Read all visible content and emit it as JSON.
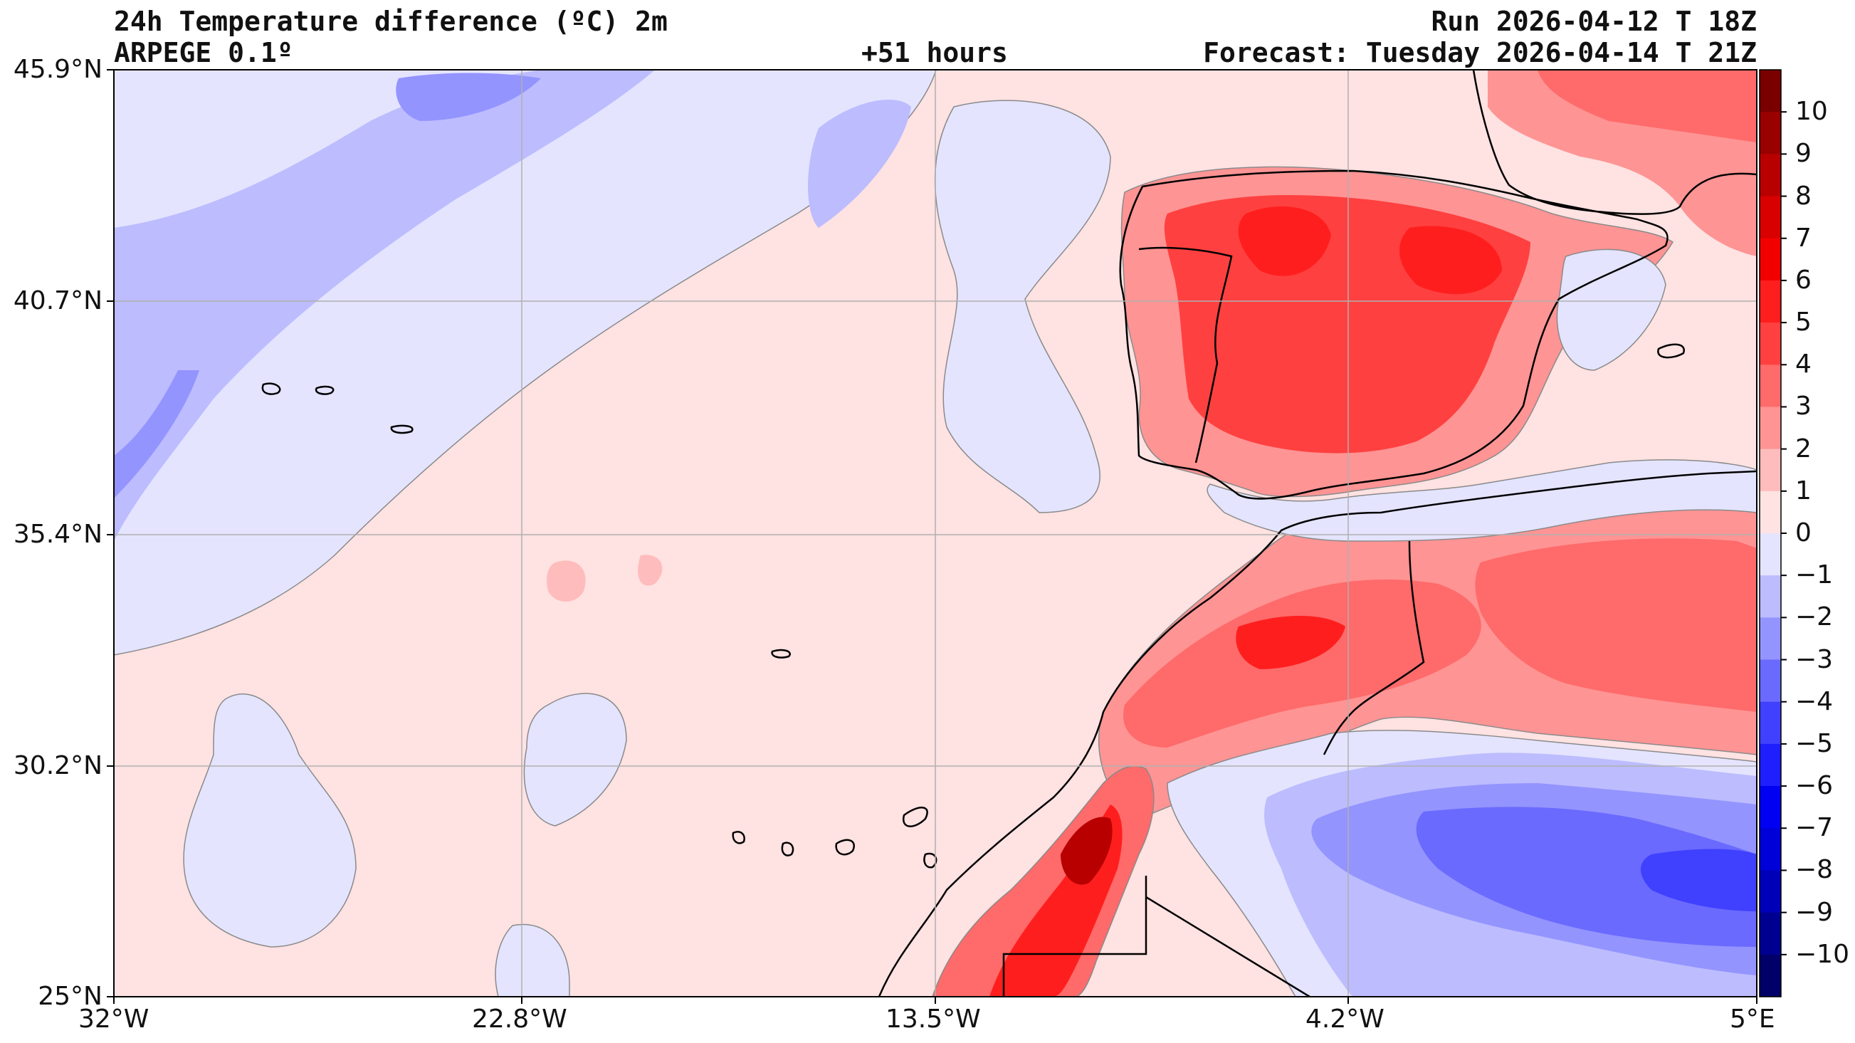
{
  "header": {
    "title": "24h Temperature difference (ºC) 2m",
    "model": "ARPEGE 0.1º",
    "lead_time": "+51 hours",
    "run": "Run 2026-04-12 T 18Z",
    "forecast": "Forecast: Tuesday 2026-04-14 T 21Z"
  },
  "axes": {
    "lat_labels": [
      "45.9°N",
      "40.7°N",
      "35.4°N",
      "30.2°N",
      "25°N"
    ],
    "lon_labels": [
      "32°W",
      "22.8°W",
      "13.5°W",
      "4.2°W",
      "5°E"
    ]
  },
  "colorbar": {
    "levels": [
      "10",
      "9",
      "8",
      "7",
      "6",
      "5",
      "4",
      "3",
      "2",
      "1",
      "0",
      "−1",
      "−2",
      "−3",
      "−4",
      "−5",
      "−6",
      "−7",
      "−8",
      "−9",
      "−10"
    ],
    "colors": [
      "#7a0000",
      "#990000",
      "#b80000",
      "#d80000",
      "#f20000",
      "#ff1e1e",
      "#ff4040",
      "#ff6a6a",
      "#ff9494",
      "#ffbcbc",
      "#ffe2e2",
      "#e4e4ff",
      "#bcbcff",
      "#9494ff",
      "#6a6aff",
      "#4040ff",
      "#1e1eff",
      "#0000f2",
      "#0000d8",
      "#0000b8",
      "#000090",
      "#000068"
    ]
  }
}
